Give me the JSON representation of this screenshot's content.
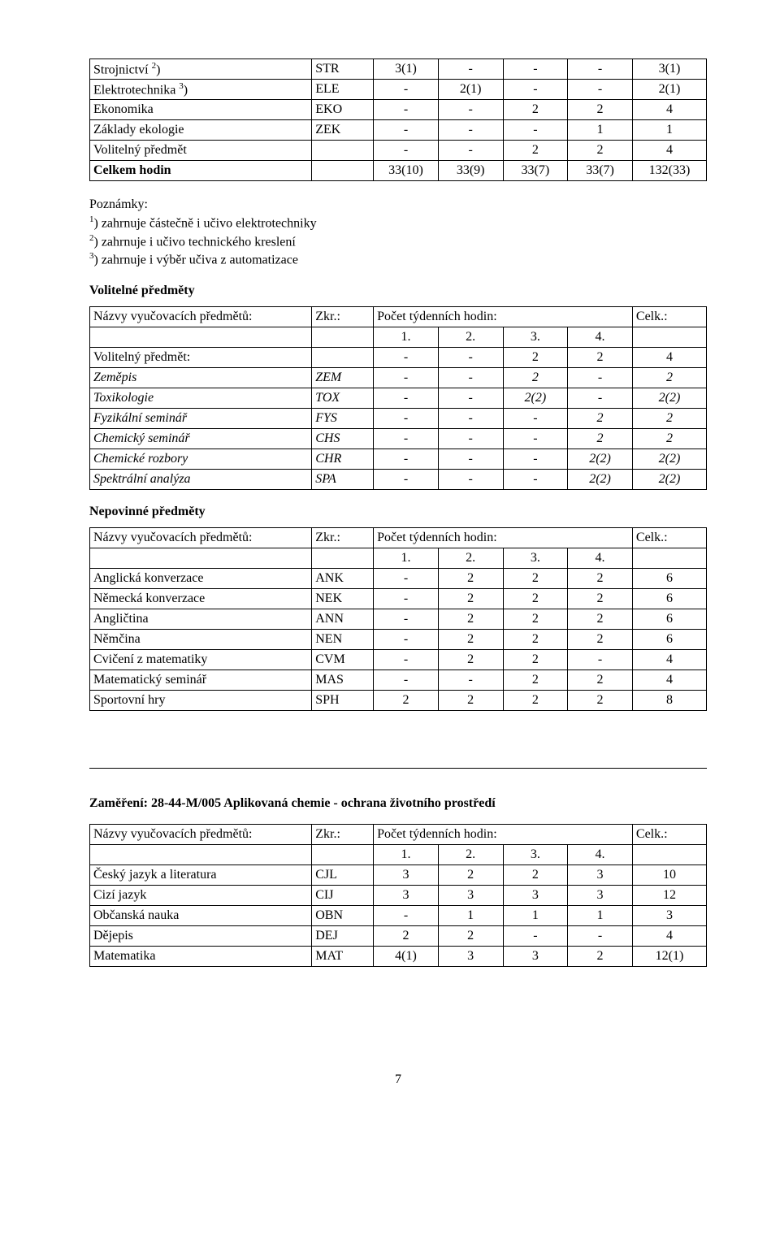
{
  "tableA": {
    "rows": [
      {
        "nameHtml": "Strojnictví <sup>2</sup>)",
        "zkr": "STR",
        "v": [
          "3(1)",
          "-",
          "-",
          "-"
        ],
        "tot": "3(1)"
      },
      {
        "nameHtml": "Elektrotechnika <sup>3</sup>)",
        "zkr": "ELE",
        "v": [
          "-",
          "2(1)",
          "-",
          "-"
        ],
        "tot": "2(1)"
      },
      {
        "nameHtml": "Ekonomika",
        "zkr": "EKO",
        "v": [
          "-",
          "-",
          "2",
          "2"
        ],
        "tot": "4"
      },
      {
        "nameHtml": "Základy ekologie",
        "zkr": "ZEK",
        "v": [
          "-",
          "-",
          "-",
          "1"
        ],
        "tot": "1"
      },
      {
        "nameHtml": "Volitelný předmět",
        "zkr": "",
        "v": [
          "-",
          "-",
          "2",
          "2"
        ],
        "tot": "4"
      },
      {
        "nameHtml": "<b>Celkem hodin</b>",
        "zkr": "",
        "v": [
          "33(10)",
          "33(9)",
          "33(7)",
          "33(7)"
        ],
        "tot": "132(33)"
      }
    ]
  },
  "notes": {
    "lead": "Poznámky:",
    "lines": [
      "<sup>1</sup>) zahrnuje částečně i učivo elektrotechniky",
      "<sup>2</sup>) zahrnuje i učivo technického kreslení",
      "<sup>3</sup>) zahrnuje i výběr učiva z automatizace"
    ]
  },
  "labels": {
    "volitelne": "Volitelné předměty",
    "nepovinne": "Nepovinné předměty",
    "nazvy": "Názvy vyučovacích předmětů:",
    "zkr": "Zkr.:",
    "pocet": "Počet týdenních hodin:",
    "celk": "Celk.:",
    "h1": "1.",
    "h2": "2.",
    "h3": "3.",
    "h4": "4."
  },
  "tableB": {
    "rows": [
      {
        "name": "Volitelný předmět:",
        "zkr": "",
        "v": [
          "-",
          "-",
          "2",
          "2"
        ],
        "tot": "4"
      },
      {
        "name": "Zeměpis",
        "zkr": "ZEM",
        "v": [
          "-",
          "-",
          "2",
          "-"
        ],
        "tot": "2",
        "italic": true
      },
      {
        "name": "Toxikologie",
        "zkr": "TOX",
        "v": [
          "-",
          "-",
          "2(2)",
          "-"
        ],
        "tot": "2(2)",
        "italic": true
      },
      {
        "name": "Fyzikální seminář",
        "zkr": "FYS",
        "v": [
          "-",
          "-",
          "-",
          "2"
        ],
        "tot": "2",
        "italic": true
      },
      {
        "name": "Chemický seminář",
        "zkr": "CHS",
        "v": [
          "-",
          "-",
          "-",
          "2"
        ],
        "tot": "2",
        "italic": true
      },
      {
        "name": "Chemické rozbory",
        "zkr": "CHR",
        "v": [
          "-",
          "-",
          "-",
          "2(2)"
        ],
        "tot": "2(2)",
        "italic": true
      },
      {
        "name": "Spektrální analýza",
        "zkr": "SPA",
        "v": [
          "-",
          "-",
          "-",
          "2(2)"
        ],
        "tot": "2(2)",
        "italic": true
      }
    ]
  },
  "tableC": {
    "rows": [
      {
        "name": "Anglická konverzace",
        "zkr": "ANK",
        "v": [
          "-",
          "2",
          "2",
          "2"
        ],
        "tot": "6"
      },
      {
        "name": "Německá konverzace",
        "zkr": "NEK",
        "v": [
          "-",
          "2",
          "2",
          "2"
        ],
        "tot": "6"
      },
      {
        "name": "Angličtina",
        "zkr": "ANN",
        "v": [
          "-",
          "2",
          "2",
          "2"
        ],
        "tot": "6"
      },
      {
        "name": "Němčina",
        "zkr": "NEN",
        "v": [
          "-",
          "2",
          "2",
          "2"
        ],
        "tot": "6"
      },
      {
        "name": "Cvičení z matematiky",
        "zkr": "CVM",
        "v": [
          "-",
          "2",
          "2",
          "-"
        ],
        "tot": "4"
      },
      {
        "name": "Matematický seminář",
        "zkr": "MAS",
        "v": [
          "-",
          "-",
          "2",
          "2"
        ],
        "tot": "4"
      },
      {
        "name": "Sportovní hry",
        "zkr": "SPH",
        "v": [
          "2",
          "2",
          "2",
          "2"
        ],
        "tot": "8"
      }
    ]
  },
  "focus": "Zaměření:  28-44-M/005  Aplikovaná chemie - ochrana životního prostředí",
  "tableD": {
    "rows": [
      {
        "name": "Český jazyk a literatura",
        "zkr": "CJL",
        "v": [
          "3",
          "2",
          "2",
          "3"
        ],
        "tot": "10"
      },
      {
        "name": "Cizí jazyk",
        "zkr": "CIJ",
        "v": [
          "3",
          "3",
          "3",
          "3"
        ],
        "tot": "12"
      },
      {
        "name": "Občanská nauka",
        "zkr": "OBN",
        "v": [
          "-",
          "1",
          "1",
          "1"
        ],
        "tot": "3"
      },
      {
        "name": "Dějepis",
        "zkr": "DEJ",
        "v": [
          "2",
          "2",
          "-",
          "-"
        ],
        "tot": "4"
      },
      {
        "name": "Matematika",
        "zkr": "MAT",
        "v": [
          "4(1)",
          "3",
          "3",
          "2"
        ],
        "tot": "12(1)"
      }
    ]
  },
  "pageNumber": "7"
}
